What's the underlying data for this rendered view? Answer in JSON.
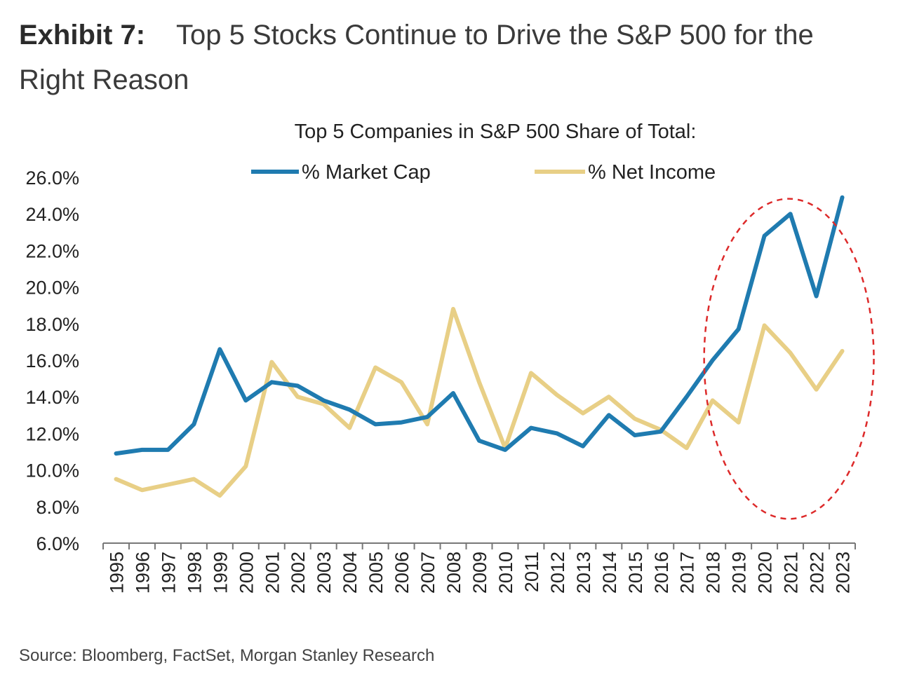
{
  "header": {
    "label": "Exhibit 7:",
    "title": "Top 5 Stocks Continue to Drive the S&P 500 for the Right Reason"
  },
  "footer": {
    "source": "Source: Bloomberg, FactSet, Morgan Stanley Research"
  },
  "chart_data": {
    "type": "line",
    "title": "Top 5 Companies in S&P 500 Share of Total:",
    "xlabel": "",
    "ylabel": "",
    "x": [
      "1995",
      "1996",
      "1997",
      "1998",
      "1999",
      "2000",
      "2001",
      "2002",
      "2003",
      "2004",
      "2005",
      "2006",
      "2007",
      "2008",
      "2009",
      "2010",
      "2011",
      "2012",
      "2013",
      "2014",
      "2015",
      "2016",
      "2017",
      "2018",
      "2019",
      "2020",
      "2021",
      "2022",
      "2023"
    ],
    "ylim": [
      6.0,
      26.0
    ],
    "yticks": [
      "26.0%",
      "24.0%",
      "22.0%",
      "20.0%",
      "18.0%",
      "16.0%",
      "14.0%",
      "12.0%",
      "10.0%",
      "8.0%",
      "6.0%"
    ],
    "ytick_values": [
      26,
      24,
      22,
      20,
      18,
      16,
      14,
      12,
      10,
      8,
      6
    ],
    "grid": false,
    "legend_position": "top",
    "series": [
      {
        "name": "% Market Cap",
        "color": "#1f7bb0",
        "values": [
          10.9,
          11.1,
          11.1,
          12.5,
          16.6,
          13.8,
          14.8,
          14.6,
          13.8,
          13.3,
          12.5,
          12.6,
          12.9,
          14.2,
          11.6,
          11.1,
          12.3,
          12.0,
          11.3,
          13.0,
          11.9,
          12.1,
          14.0,
          16.0,
          17.7,
          22.8,
          24.0,
          19.5,
          24.9
        ],
        "legend_label": "% Market Cap"
      },
      {
        "name": "% Net Income",
        "color": "#e8cf86",
        "values": [
          9.5,
          8.9,
          9.2,
          9.5,
          8.6,
          10.2,
          15.9,
          14.0,
          13.6,
          12.3,
          15.6,
          14.8,
          12.5,
          18.8,
          14.8,
          11.2,
          15.3,
          14.1,
          13.1,
          14.0,
          12.8,
          12.2,
          11.2,
          13.8,
          12.6,
          17.9,
          16.4,
          14.4,
          16.5
        ],
        "legend_label": "% Net Income"
      }
    ],
    "annotations": [
      {
        "type": "dashed-ellipse",
        "color": "#dd2a2a",
        "x_from": "2019",
        "x_to": "2023"
      }
    ]
  }
}
